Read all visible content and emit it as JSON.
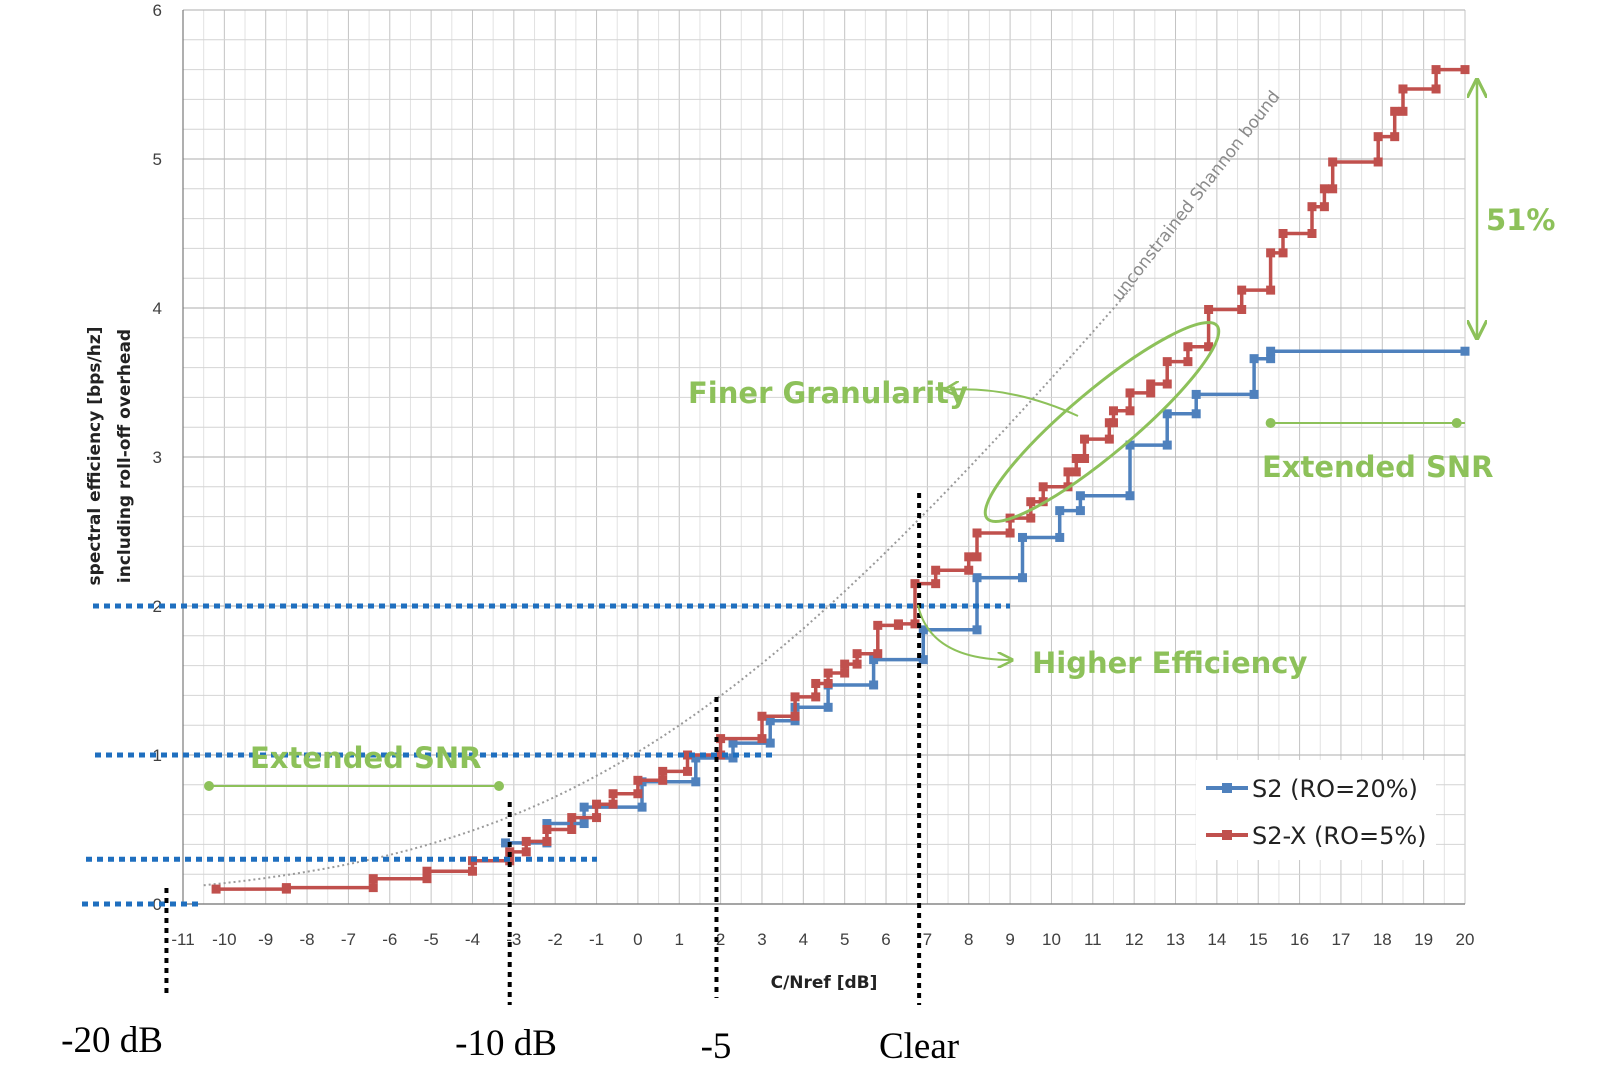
{
  "chart_data": {
    "type": "line",
    "xlabel": "C/Nref [dB]",
    "ylabel_line1": "spectral efficiency  [bps/hz]",
    "ylabel_line2": "including roll-off overhead",
    "xlim": [
      -11,
      20
    ],
    "ylim": [
      0,
      6
    ],
    "x_ticks": [
      -11,
      -10,
      -9,
      -8,
      -7,
      -6,
      -5,
      -4,
      -3,
      -2,
      -1,
      0,
      1,
      2,
      3,
      4,
      5,
      6,
      7,
      8,
      9,
      10,
      11,
      12,
      13,
      14,
      15,
      16,
      17,
      18,
      19,
      20
    ],
    "y_ticks": [
      0,
      1,
      2,
      3,
      4,
      5,
      6
    ],
    "grid": true,
    "legend_position": "bottom-right",
    "colors": {
      "s2": "#4f81bd",
      "s2x": "#c0504d",
      "green": "#8dc15a",
      "blue_dotted": "#1f6fbf",
      "shannon": "#9a9a9a"
    },
    "shannon_label": "unconstrained Shannon bound",
    "series": [
      {
        "name": "S2 (RO=20%)",
        "step_points": [
          [
            -3.2,
            0.41
          ],
          [
            -2.2,
            0.41
          ],
          [
            -2.2,
            0.54
          ],
          [
            -1.3,
            0.54
          ],
          [
            -1.3,
            0.65
          ],
          [
            0.1,
            0.65
          ],
          [
            0.1,
            0.82
          ],
          [
            1.4,
            0.82
          ],
          [
            1.4,
            0.98
          ],
          [
            2.3,
            0.98
          ],
          [
            2.3,
            1.08
          ],
          [
            3.2,
            1.08
          ],
          [
            3.2,
            1.23
          ],
          [
            3.8,
            1.23
          ],
          [
            3.8,
            1.32
          ],
          [
            4.6,
            1.32
          ],
          [
            4.6,
            1.47
          ],
          [
            5.7,
            1.47
          ],
          [
            5.7,
            1.64
          ],
          [
            6.9,
            1.64
          ],
          [
            6.9,
            1.84
          ],
          [
            8.2,
            1.84
          ],
          [
            8.2,
            2.19
          ],
          [
            9.3,
            2.19
          ],
          [
            9.3,
            2.46
          ],
          [
            10.2,
            2.46
          ],
          [
            10.2,
            2.64
          ],
          [
            10.7,
            2.64
          ],
          [
            10.7,
            2.74
          ],
          [
            11.9,
            2.74
          ],
          [
            11.9,
            3.08
          ],
          [
            12.8,
            3.08
          ],
          [
            12.8,
            3.29
          ],
          [
            13.5,
            3.29
          ],
          [
            13.5,
            3.42
          ],
          [
            14.9,
            3.42
          ],
          [
            14.9,
            3.66
          ],
          [
            15.3,
            3.66
          ],
          [
            15.3,
            3.71
          ],
          [
            20,
            3.71
          ]
        ]
      },
      {
        "name": "S2-X (RO=5%)",
        "step_points": [
          [
            -10.2,
            0.1
          ],
          [
            -8.5,
            0.1
          ],
          [
            -8.5,
            0.11
          ],
          [
            -6.4,
            0.11
          ],
          [
            -6.4,
            0.17
          ],
          [
            -5.1,
            0.17
          ],
          [
            -5.1,
            0.22
          ],
          [
            -4.0,
            0.22
          ],
          [
            -4.0,
            0.29
          ],
          [
            -3.1,
            0.29
          ],
          [
            -3.1,
            0.35
          ],
          [
            -2.7,
            0.35
          ],
          [
            -2.7,
            0.42
          ],
          [
            -2.2,
            0.42
          ],
          [
            -2.2,
            0.5
          ],
          [
            -1.6,
            0.5
          ],
          [
            -1.6,
            0.58
          ],
          [
            -1.0,
            0.58
          ],
          [
            -1.0,
            0.67
          ],
          [
            -0.6,
            0.67
          ],
          [
            -0.6,
            0.74
          ],
          [
            0.0,
            0.74
          ],
          [
            0.0,
            0.83
          ],
          [
            0.6,
            0.83
          ],
          [
            0.6,
            0.89
          ],
          [
            1.2,
            0.89
          ],
          [
            1.2,
            1.0
          ],
          [
            2.0,
            1.0
          ],
          [
            2.0,
            1.11
          ],
          [
            3.0,
            1.11
          ],
          [
            3.0,
            1.26
          ],
          [
            3.8,
            1.26
          ],
          [
            3.8,
            1.39
          ],
          [
            4.3,
            1.39
          ],
          [
            4.3,
            1.48
          ],
          [
            4.6,
            1.48
          ],
          [
            4.6,
            1.55
          ],
          [
            5.0,
            1.55
          ],
          [
            5.0,
            1.61
          ],
          [
            5.3,
            1.61
          ],
          [
            5.3,
            1.68
          ],
          [
            5.8,
            1.68
          ],
          [
            5.8,
            1.87
          ],
          [
            6.3,
            1.87
          ],
          [
            6.3,
            1.88
          ],
          [
            6.7,
            1.88
          ],
          [
            6.7,
            2.15
          ],
          [
            7.2,
            2.15
          ],
          [
            7.2,
            2.24
          ],
          [
            8.0,
            2.24
          ],
          [
            8.0,
            2.33
          ],
          [
            8.2,
            2.33
          ],
          [
            8.2,
            2.49
          ],
          [
            9.0,
            2.49
          ],
          [
            9.0,
            2.59
          ],
          [
            9.5,
            2.59
          ],
          [
            9.5,
            2.7
          ],
          [
            9.8,
            2.7
          ],
          [
            9.8,
            2.8
          ],
          [
            10.4,
            2.8
          ],
          [
            10.4,
            2.9
          ],
          [
            10.6,
            2.9
          ],
          [
            10.6,
            2.99
          ],
          [
            10.8,
            2.99
          ],
          [
            10.8,
            3.12
          ],
          [
            11.4,
            3.12
          ],
          [
            11.4,
            3.23
          ],
          [
            11.5,
            3.23
          ],
          [
            11.5,
            3.31
          ],
          [
            11.9,
            3.31
          ],
          [
            11.9,
            3.43
          ],
          [
            12.4,
            3.43
          ],
          [
            12.4,
            3.49
          ],
          [
            12.8,
            3.49
          ],
          [
            12.8,
            3.64
          ],
          [
            13.3,
            3.64
          ],
          [
            13.3,
            3.74
          ],
          [
            13.8,
            3.74
          ],
          [
            13.8,
            3.99
          ],
          [
            14.6,
            3.99
          ],
          [
            14.6,
            4.12
          ],
          [
            15.3,
            4.12
          ],
          [
            15.3,
            4.37
          ],
          [
            15.6,
            4.37
          ],
          [
            15.6,
            4.5
          ],
          [
            16.3,
            4.5
          ],
          [
            16.3,
            4.68
          ],
          [
            16.6,
            4.68
          ],
          [
            16.6,
            4.8
          ],
          [
            16.8,
            4.8
          ],
          [
            16.8,
            4.98
          ],
          [
            17.9,
            4.98
          ],
          [
            17.9,
            5.15
          ],
          [
            18.3,
            5.15
          ],
          [
            18.3,
            5.32
          ],
          [
            18.5,
            5.32
          ],
          [
            18.5,
            5.47
          ],
          [
            19.3,
            5.47
          ],
          [
            19.3,
            5.6
          ],
          [
            20,
            5.6
          ]
        ]
      }
    ],
    "annotations": {
      "finer_granularity": "Finer Granularity",
      "higher_efficiency": "Higher Efficiency",
      "extended_snr_right": "Extended SNR",
      "extended_snr_left": "Extended SNR",
      "gain": "51%"
    },
    "bottom_labels": [
      {
        "text": "-20 dB",
        "x_db": -11.4
      },
      {
        "text": "-10 dB",
        "x_db": -3.1
      },
      {
        "text": "-5",
        "x_db": 1.9
      },
      {
        "text": "Clear",
        "x_db": 6.8
      }
    ],
    "reference_levels_y": [
      2,
      1,
      0.3,
      0
    ]
  }
}
